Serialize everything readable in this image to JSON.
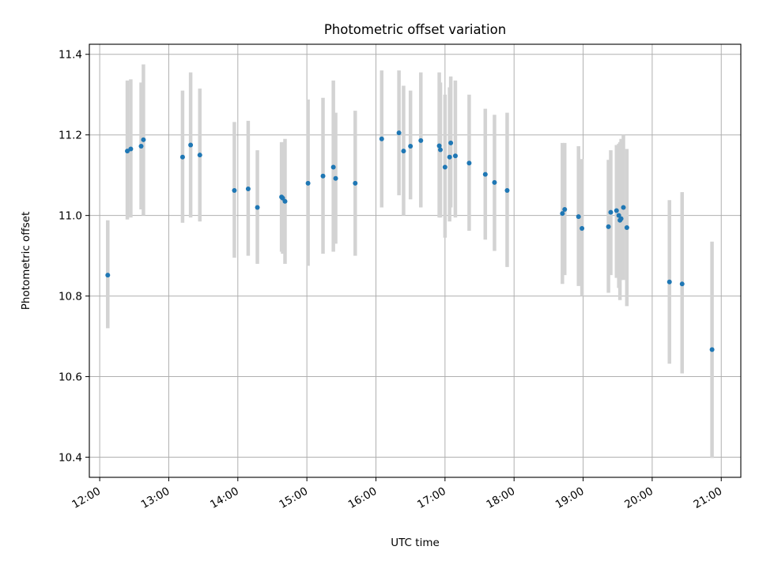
{
  "colors": {
    "point": "#1f77b4",
    "errorbar": "#d3d3d3",
    "grid": "#b0b0b0",
    "axis": "#000000",
    "background": "#ffffff"
  },
  "chart_data": {
    "type": "scatter",
    "title": "Photometric offset variation",
    "xlabel": "UTC time",
    "ylabel": "Photometric offset",
    "xlim": [
      "11:51",
      "21:17"
    ],
    "ylim": [
      10.35,
      11.425
    ],
    "grid": true,
    "x_ticks": [
      "12:00",
      "13:00",
      "14:00",
      "15:00",
      "16:00",
      "17:00",
      "18:00",
      "19:00",
      "20:00",
      "21:00"
    ],
    "y_ticks": [
      "10.4",
      "10.6",
      "10.8",
      "11.0",
      "11.2",
      "11.4"
    ],
    "series": [
      {
        "x": [
          "12:07",
          "12:24",
          "12:27",
          "12:36",
          "12:38",
          "13:12",
          "13:19",
          "13:27",
          "13:57",
          "14:09",
          "14:17",
          "14:38",
          "14:39",
          "14:41",
          "15:01",
          "15:14",
          "15:23",
          "15:25",
          "15:42",
          "16:05",
          "16:20",
          "16:24",
          "16:30",
          "16:39",
          "16:55",
          "16:56",
          "17:00",
          "17:04",
          "17:05",
          "17:09",
          "17:21",
          "17:35",
          "17:43",
          "17:54",
          "18:42",
          "18:44",
          "18:56",
          "18:59",
          "19:22",
          "19:24",
          "19:29",
          "19:31",
          "19:32",
          "19:33",
          "19:35",
          "19:38",
          "20:15",
          "20:26",
          "20:52"
        ],
        "y": [
          10.852,
          11.16,
          11.165,
          11.172,
          11.188,
          11.145,
          11.175,
          11.15,
          11.062,
          11.066,
          11.02,
          11.046,
          11.043,
          11.035,
          11.08,
          11.098,
          11.12,
          11.092,
          11.08,
          11.19,
          11.205,
          11.16,
          11.172,
          11.186,
          11.173,
          11.163,
          11.12,
          11.145,
          11.18,
          11.148,
          11.13,
          11.102,
          11.082,
          11.062,
          11.005,
          11.015,
          10.997,
          10.968,
          10.972,
          11.008,
          11.012,
          11.0,
          10.988,
          10.992,
          11.02,
          10.97,
          10.835,
          10.83,
          10.667
        ],
        "y_low": [
          10.72,
          10.99,
          10.995,
          11.015,
          11.0,
          10.982,
          10.995,
          10.985,
          10.895,
          10.9,
          10.88,
          10.91,
          10.905,
          10.88,
          10.875,
          10.905,
          10.91,
          10.93,
          10.9,
          11.02,
          11.05,
          11.0,
          11.04,
          11.02,
          10.995,
          10.995,
          10.945,
          10.985,
          11.02,
          10.995,
          10.962,
          10.94,
          10.912,
          10.872,
          10.83,
          10.852,
          10.825,
          10.8,
          10.808,
          10.852,
          10.845,
          10.82,
          10.79,
          10.84,
          10.84,
          10.775,
          10.632,
          10.608,
          10.398
        ],
        "y_high": [
          10.988,
          11.335,
          11.338,
          11.33,
          11.375,
          11.31,
          11.355,
          11.315,
          11.232,
          11.235,
          11.162,
          11.182,
          11.182,
          11.19,
          11.288,
          11.292,
          11.335,
          11.255,
          11.26,
          11.36,
          11.36,
          11.322,
          11.31,
          11.355,
          11.355,
          11.33,
          11.3,
          11.318,
          11.345,
          11.335,
          11.3,
          11.265,
          11.25,
          11.255,
          11.18,
          11.18,
          11.172,
          11.14,
          11.138,
          11.162,
          11.175,
          11.178,
          11.182,
          11.19,
          11.2,
          11.165,
          11.038,
          11.058,
          10.935
        ]
      }
    ]
  }
}
